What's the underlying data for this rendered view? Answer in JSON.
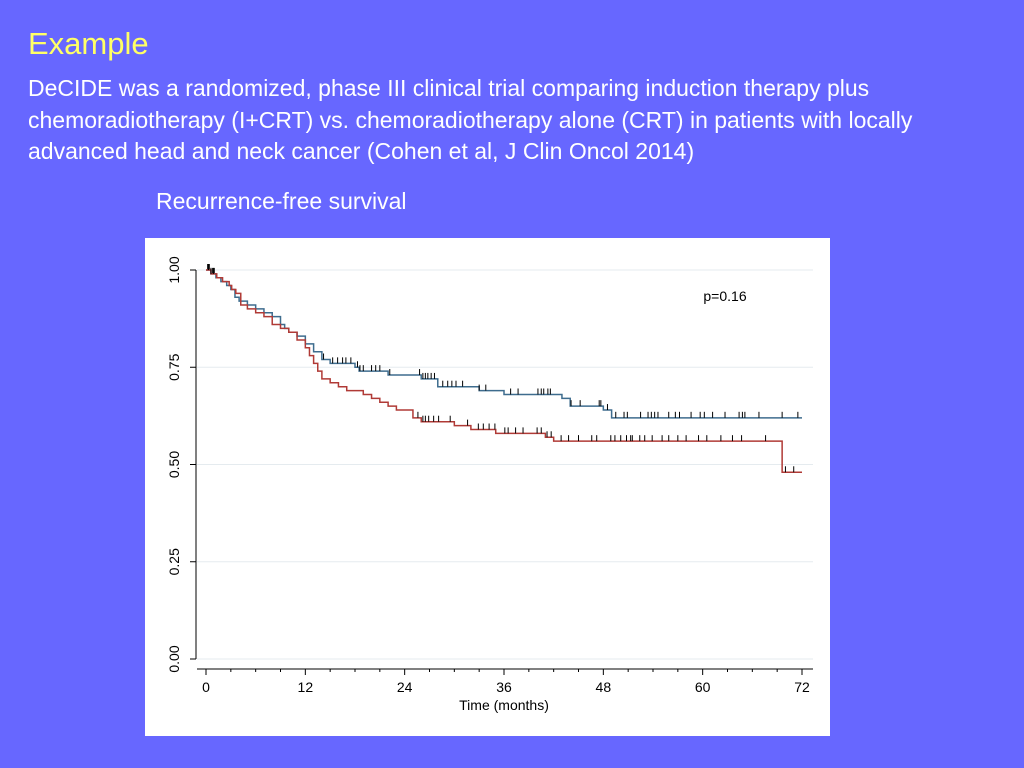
{
  "slide": {
    "title": "Example",
    "description": "DeCIDE was a randomized, phase III clinical trial comparing induction therapy plus chemoradiotherapy (I+CRT) vs. chemoradiotherapy alone (CRT) in patients with locally advanced head and neck cancer  (Cohen et al, J Clin Oncol 2014)",
    "chart_caption": "Recurrence-free survival"
  },
  "colors": {
    "background": "#6767FF",
    "title": "#FFFF66",
    "text": "#FFFFFF",
    "series_blue": "#3E6C8E",
    "series_red": "#B03A36"
  },
  "chart_data": {
    "type": "line",
    "step": true,
    "title": "",
    "xlabel": "Time (months)",
    "ylabel": "",
    "xlim": [
      0,
      72
    ],
    "ylim": [
      0,
      1
    ],
    "xticks": [
      "0",
      "12",
      "24",
      "36",
      "48",
      "60",
      "72"
    ],
    "yticks": [
      "0.00",
      "0.25",
      "0.50",
      "0.75",
      "1.00"
    ],
    "grid": true,
    "annotations": [
      "p=0.16"
    ],
    "series": [
      {
        "name": "",
        "color": "#3E6C8E",
        "points": [
          0,
          1.0,
          0.6,
          0.99,
          1.2,
          0.98,
          1.8,
          0.97,
          2.5,
          0.96,
          3.0,
          0.95,
          3.5,
          0.93,
          4.0,
          0.92,
          5.0,
          0.91,
          6.0,
          0.9,
          7.0,
          0.89,
          8.0,
          0.88,
          9.0,
          0.86,
          9.5,
          0.85,
          10.0,
          0.84,
          11.0,
          0.83,
          12.0,
          0.81,
          13.0,
          0.79,
          14.0,
          0.77,
          15.0,
          0.76,
          18.0,
          0.75,
          18.5,
          0.74,
          21.0,
          0.74,
          22.0,
          0.73,
          26.0,
          0.72,
          28.0,
          0.7,
          33.0,
          0.69,
          36.0,
          0.68,
          43.0,
          0.67,
          44.0,
          0.65,
          48.0,
          0.64,
          49.0,
          0.62,
          72.0,
          0.62
        ],
        "censor_x": [
          0.2,
          0.4,
          0.6,
          0.8,
          1.0,
          14.2,
          15.3,
          15.9,
          16.5,
          16.9,
          17.5,
          18.3,
          18.6,
          19.0,
          20.0,
          20.5,
          21.0,
          22.2,
          25.8,
          26.2,
          26.5,
          26.8,
          27.2,
          27.6,
          28.6,
          29.2,
          29.7,
          30.2,
          31.0,
          33.0,
          33.8,
          36.8,
          37.7,
          40.1,
          40.5,
          40.8,
          41.3,
          41.6,
          44.1,
          45.2,
          47.5,
          47.7,
          48.5,
          49.5,
          50.5,
          50.9,
          52.5,
          53.4,
          53.8,
          54.2,
          54.6,
          55.9,
          56.7,
          57.2,
          58.6,
          59.7,
          60.2,
          61.2,
          62.7,
          64.4,
          64.8,
          65.1,
          66.8,
          69.6,
          71.5
        ]
      },
      {
        "name": "",
        "color": "#B03A36",
        "points": [
          0,
          1.0,
          0.6,
          0.99,
          1.3,
          0.98,
          2.0,
          0.97,
          2.8,
          0.96,
          3.1,
          0.95,
          3.6,
          0.94,
          4.2,
          0.91,
          5.0,
          0.9,
          6.0,
          0.89,
          7.0,
          0.88,
          8.0,
          0.86,
          9.0,
          0.85,
          10.0,
          0.84,
          11.0,
          0.82,
          12.0,
          0.8,
          12.5,
          0.78,
          13.0,
          0.76,
          13.5,
          0.74,
          14.0,
          0.72,
          15.0,
          0.71,
          16.0,
          0.7,
          17.0,
          0.69,
          19.0,
          0.68,
          20.0,
          0.67,
          21.0,
          0.66,
          22.0,
          0.65,
          23.0,
          0.64,
          25.0,
          0.62,
          26.0,
          0.61,
          30.0,
          0.6,
          32.0,
          0.59,
          35.0,
          0.58,
          41.0,
          0.57,
          42.0,
          0.56,
          69.5,
          0.56,
          69.6,
          0.48,
          72.0,
          0.48
        ],
        "censor_x": [
          0.3,
          0.6,
          0.9,
          25.6,
          26.2,
          26.5,
          26.9,
          27.5,
          28.1,
          29.5,
          31.6,
          32.9,
          33.5,
          34.2,
          34.9,
          36.1,
          36.5,
          37.4,
          38.3,
          40.0,
          40.5,
          41.2,
          41.7,
          42.9,
          43.8,
          45.0,
          46.6,
          47.2,
          48.9,
          49.4,
          50.1,
          50.8,
          51.3,
          51.5,
          52.4,
          53.0,
          53.9,
          55.1,
          55.9,
          57.0,
          58.0,
          59.5,
          60.5,
          62.2,
          63.6,
          64.7,
          67.6,
          70.0,
          71.0
        ]
      }
    ]
  }
}
